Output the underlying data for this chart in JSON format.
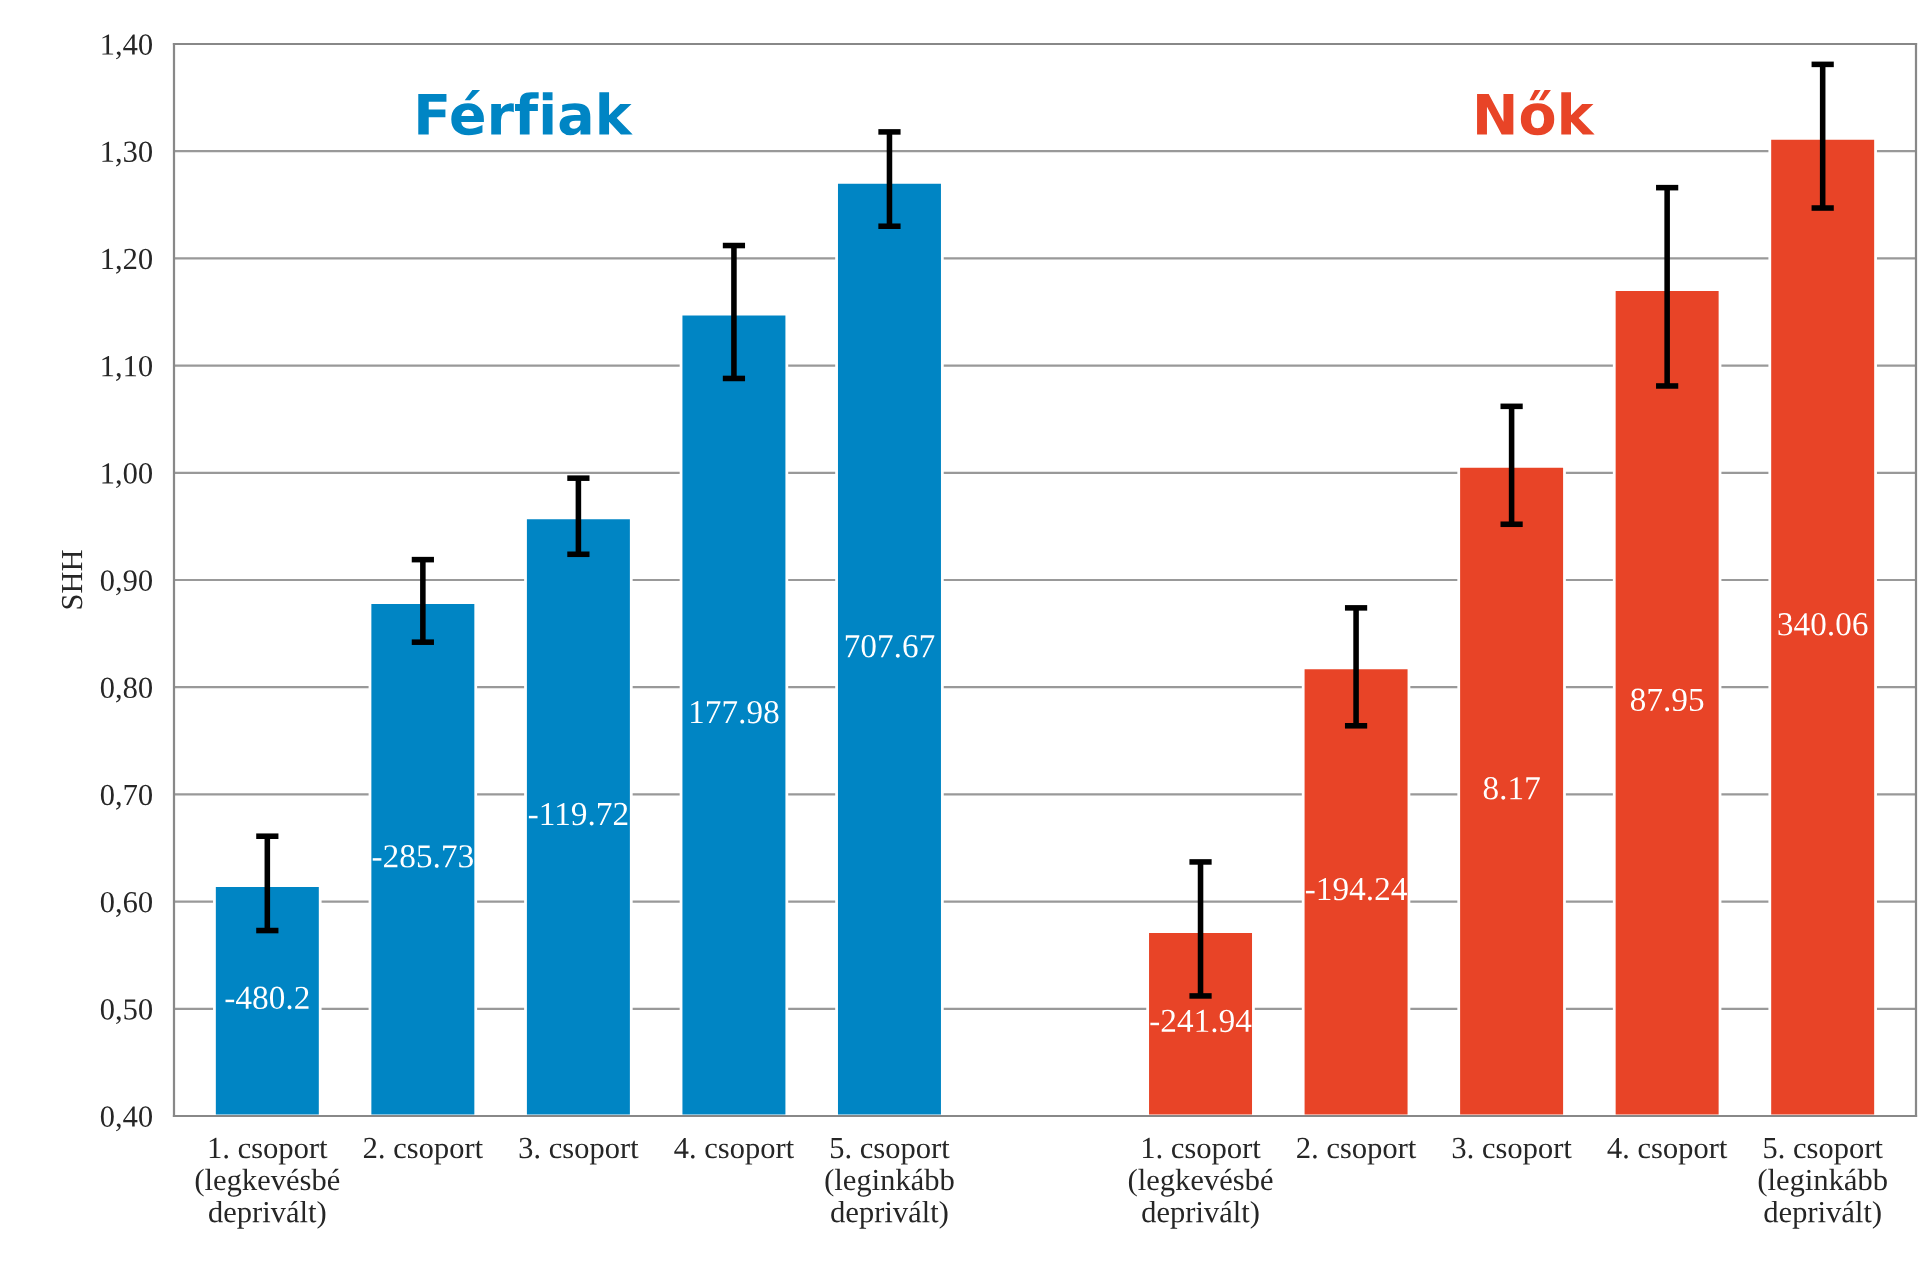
{
  "chart_data": {
    "type": "bar",
    "ylabel": "SHH",
    "categories": [
      "1. csoport\n(legkevésbé\ndeprivált)",
      "2. csoport",
      "3. csoport",
      "4. csoport",
      "5. csoport\n(leginkább\ndeprivált)",
      null,
      "1. csoport\n(legkevésbé\ndeprivált)",
      "2. csoport",
      "3. csoport",
      "4. csoport",
      "5. csoport\n(leginkább\ndeprivált)"
    ],
    "values": [
      0.615,
      0.879,
      0.958,
      1.148,
      1.271,
      null,
      0.572,
      0.818,
      1.006,
      1.171,
      1.312
    ],
    "colors": [
      "#0085c4",
      "#0085c4",
      "#0085c4",
      "#0085c4",
      "#0085c4",
      null,
      "#e84427",
      "#e84427",
      "#e84427",
      "#e84427",
      "#e84427"
    ],
    "errors": [
      [
        0.573,
        0.661
      ],
      [
        0.842,
        0.919
      ],
      [
        0.924,
        0.995
      ],
      [
        1.088,
        1.212
      ],
      [
        1.23,
        1.318
      ],
      null,
      [
        0.512,
        0.637
      ],
      [
        0.764,
        0.874
      ],
      [
        0.952,
        1.062
      ],
      [
        1.081,
        1.266
      ],
      [
        1.247,
        1.381
      ]
    ],
    "annotations": [
      "Férfiak",
      "Nők",
      "-480.2",
      "-285.73",
      "-119.72",
      "177.98",
      "707.67",
      "-241.94",
      "-194.24",
      "8.17",
      "87.95",
      "340.06"
    ],
    "ylim": [
      0.4,
      1.4
    ],
    "yticks": [
      {
        "value": 0.4,
        "label": "0,40"
      },
      {
        "value": 0.5,
        "label": "0,50"
      },
      {
        "value": 0.6,
        "label": "0,60"
      },
      {
        "value": 0.7,
        "label": "0,70"
      },
      {
        "value": 0.8,
        "label": "0,80"
      },
      {
        "value": 0.9,
        "label": "0,90"
      },
      {
        "value": 1.0,
        "label": "1,00"
      },
      {
        "value": 1.1,
        "label": "1,10"
      },
      {
        "value": 1.2,
        "label": "1,20"
      },
      {
        "value": 1.3,
        "label": "1,30"
      },
      {
        "value": 1.4,
        "label": "1,40"
      }
    ],
    "grid": "y"
  }
}
